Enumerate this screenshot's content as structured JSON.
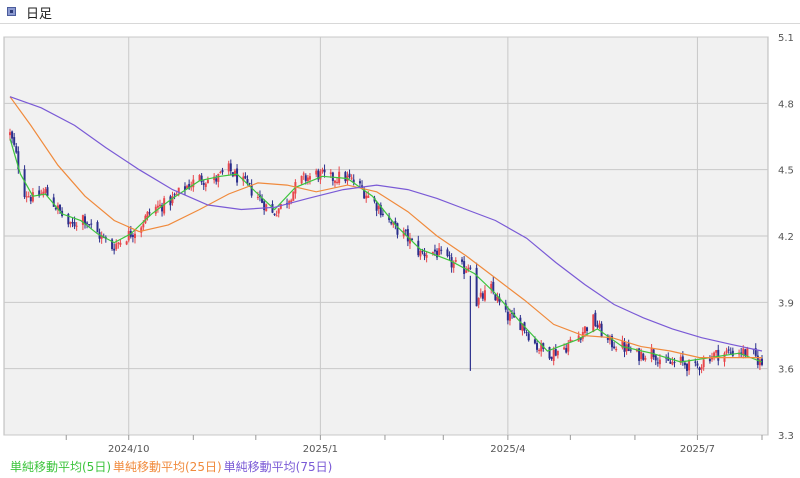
{
  "header": {
    "title": "日足"
  },
  "colors": {
    "up": "#e8474c",
    "down": "#2b2f8c",
    "ma5": "#3cc43c",
    "ma25": "#f08a3c",
    "ma75": "#7a5ad6",
    "grid": "#c8c8c8",
    "plot_bg": "#f1f1f1"
  },
  "legend": [
    {
      "label": "単純移動平均(5日)",
      "color": "#3cc43c"
    },
    {
      "label": "単純移動平均(25日)",
      "color": "#f08a3c"
    },
    {
      "label": "単純移動平均(75日)",
      "color": "#7a5ad6"
    }
  ],
  "chart_data": {
    "type": "candlestick",
    "title": "",
    "ylim": [
      3.3,
      5.1
    ],
    "y_ticks": [
      "5.1",
      "4.8",
      "4.5",
      "4.2",
      "3.9",
      "3.6",
      "3.3"
    ],
    "x_labels": [
      "2024/10",
      "2025/1",
      "2025/4",
      "2025/7"
    ],
    "x_range": [
      "2024-08-05",
      "2025-08-01"
    ],
    "grid": true,
    "close_path": [
      [
        "2024-08-05",
        4.66
      ],
      [
        "2024-08-07",
        4.6
      ],
      [
        "2024-08-12",
        4.4
      ],
      [
        "2024-08-16",
        4.37
      ],
      [
        "2024-08-22",
        4.4
      ],
      [
        "2024-08-28",
        4.32
      ],
      [
        "2024-09-03",
        4.24
      ],
      [
        "2024-09-09",
        4.29
      ],
      [
        "2024-09-15",
        4.22
      ],
      [
        "2024-09-23",
        4.15
      ],
      [
        "2024-09-30",
        4.2
      ],
      [
        "2024-10-06",
        4.24
      ],
      [
        "2024-10-12",
        4.32
      ],
      [
        "2024-10-20",
        4.35
      ],
      [
        "2024-10-28",
        4.42
      ],
      [
        "2024-11-04",
        4.46
      ],
      [
        "2024-11-11",
        4.45
      ],
      [
        "2024-11-18",
        4.5
      ],
      [
        "2024-11-25",
        4.44
      ],
      [
        "2024-12-02",
        4.38
      ],
      [
        "2024-12-09",
        4.3
      ],
      [
        "2024-12-16",
        4.36
      ],
      [
        "2024-12-22",
        4.45
      ],
      [
        "2024-12-30",
        4.48
      ],
      [
        "2025-01-06",
        4.46
      ],
      [
        "2025-01-12",
        4.47
      ],
      [
        "2025-01-18",
        4.44
      ],
      [
        "2025-01-24",
        4.38
      ],
      [
        "2025-01-30",
        4.32
      ],
      [
        "2025-02-05",
        4.24
      ],
      [
        "2025-02-11",
        4.2
      ],
      [
        "2025-02-18",
        4.12
      ],
      [
        "2025-02-25",
        4.13
      ],
      [
        "2025-03-04",
        4.08
      ],
      [
        "2025-03-11",
        4.05
      ],
      [
        "2025-03-14",
        4.08
      ],
      [
        "2025-03-17",
        3.9
      ],
      [
        "2025-03-24",
        3.96
      ],
      [
        "2025-03-31",
        3.84
      ],
      [
        "2025-04-08",
        3.8
      ],
      [
        "2025-04-15",
        3.7
      ],
      [
        "2025-04-22",
        3.67
      ],
      [
        "2025-04-29",
        3.7
      ],
      [
        "2025-05-06",
        3.76
      ],
      [
        "2025-05-12",
        3.82
      ],
      [
        "2025-05-19",
        3.72
      ],
      [
        "2025-05-26",
        3.7
      ],
      [
        "2025-06-02",
        3.66
      ],
      [
        "2025-06-09",
        3.68
      ],
      [
        "2025-06-16",
        3.62
      ],
      [
        "2025-06-23",
        3.63
      ],
      [
        "2025-06-30",
        3.6
      ],
      [
        "2025-07-07",
        3.66
      ],
      [
        "2025-07-14",
        3.67
      ],
      [
        "2025-07-21",
        3.68
      ],
      [
        "2025-07-28",
        3.66
      ],
      [
        "2025-08-01",
        3.62
      ]
    ],
    "series": [
      {
        "values": [
          [
            "2024-08-05",
            4.64
          ],
          [
            "2024-08-10",
            4.48
          ],
          [
            "2024-08-16",
            4.38
          ],
          [
            "2024-08-22",
            4.39
          ],
          [
            "2024-08-30",
            4.3
          ],
          [
            "2024-09-08",
            4.27
          ],
          [
            "2024-09-16",
            4.21
          ],
          [
            "2024-09-24",
            4.17
          ],
          [
            "2024-10-02",
            4.21
          ],
          [
            "2024-10-12",
            4.3
          ],
          [
            "2024-10-22",
            4.37
          ],
          [
            "2024-11-04",
            4.45
          ],
          [
            "2024-11-14",
            4.47
          ],
          [
            "2024-11-22",
            4.48
          ],
          [
            "2024-12-02",
            4.39
          ],
          [
            "2024-12-10",
            4.32
          ],
          [
            "2024-12-20",
            4.42
          ],
          [
            "2025-01-02",
            4.47
          ],
          [
            "2025-01-14",
            4.46
          ],
          [
            "2025-01-26",
            4.38
          ],
          [
            "2025-02-06",
            4.25
          ],
          [
            "2025-02-18",
            4.14
          ],
          [
            "2025-03-04",
            4.09
          ],
          [
            "2025-03-16",
            4.03
          ],
          [
            "2025-03-26",
            3.94
          ],
          [
            "2025-04-08",
            3.8
          ],
          [
            "2025-04-20",
            3.68
          ],
          [
            "2025-05-04",
            3.73
          ],
          [
            "2025-05-14",
            3.78
          ],
          [
            "2025-05-26",
            3.7
          ],
          [
            "2025-06-09",
            3.67
          ],
          [
            "2025-06-23",
            3.63
          ],
          [
            "2025-07-07",
            3.65
          ],
          [
            "2025-07-21",
            3.67
          ],
          [
            "2025-08-01",
            3.63
          ]
        ]
      },
      {
        "values": [
          [
            "2024-08-05",
            4.83
          ],
          [
            "2024-08-15",
            4.7
          ],
          [
            "2024-08-28",
            4.52
          ],
          [
            "2024-09-10",
            4.38
          ],
          [
            "2024-09-24",
            4.27
          ],
          [
            "2024-10-06",
            4.22
          ],
          [
            "2024-10-20",
            4.25
          ],
          [
            "2024-11-04",
            4.32
          ],
          [
            "2024-11-18",
            4.39
          ],
          [
            "2024-12-02",
            4.44
          ],
          [
            "2024-12-16",
            4.43
          ],
          [
            "2024-12-30",
            4.4
          ],
          [
            "2025-01-14",
            4.43
          ],
          [
            "2025-01-28",
            4.4
          ],
          [
            "2025-02-12",
            4.31
          ],
          [
            "2025-02-26",
            4.2
          ],
          [
            "2025-03-12",
            4.11
          ],
          [
            "2025-03-26",
            4.01
          ],
          [
            "2025-04-09",
            3.91
          ],
          [
            "2025-04-23",
            3.8
          ],
          [
            "2025-05-07",
            3.75
          ],
          [
            "2025-05-21",
            3.74
          ],
          [
            "2025-06-04",
            3.7
          ],
          [
            "2025-06-18",
            3.68
          ],
          [
            "2025-07-02",
            3.65
          ],
          [
            "2025-07-16",
            3.65
          ],
          [
            "2025-08-01",
            3.65
          ]
        ]
      },
      {
        "values": [
          [
            "2024-08-05",
            4.83
          ],
          [
            "2024-08-20",
            4.78
          ],
          [
            "2024-09-05",
            4.7
          ],
          [
            "2024-09-20",
            4.6
          ],
          [
            "2024-10-06",
            4.5
          ],
          [
            "2024-10-22",
            4.41
          ],
          [
            "2024-11-08",
            4.34
          ],
          [
            "2024-11-24",
            4.32
          ],
          [
            "2024-12-10",
            4.33
          ],
          [
            "2024-12-26",
            4.37
          ],
          [
            "2025-01-12",
            4.41
          ],
          [
            "2025-01-28",
            4.43
          ],
          [
            "2025-02-12",
            4.41
          ],
          [
            "2025-02-26",
            4.37
          ],
          [
            "2025-03-12",
            4.32
          ],
          [
            "2025-03-26",
            4.27
          ],
          [
            "2025-04-10",
            4.19
          ],
          [
            "2025-04-24",
            4.08
          ],
          [
            "2025-05-08",
            3.98
          ],
          [
            "2025-05-22",
            3.89
          ],
          [
            "2025-06-05",
            3.83
          ],
          [
            "2025-06-19",
            3.78
          ],
          [
            "2025-07-03",
            3.74
          ],
          [
            "2025-07-17",
            3.71
          ],
          [
            "2025-08-01",
            3.68
          ]
        ]
      }
    ]
  }
}
